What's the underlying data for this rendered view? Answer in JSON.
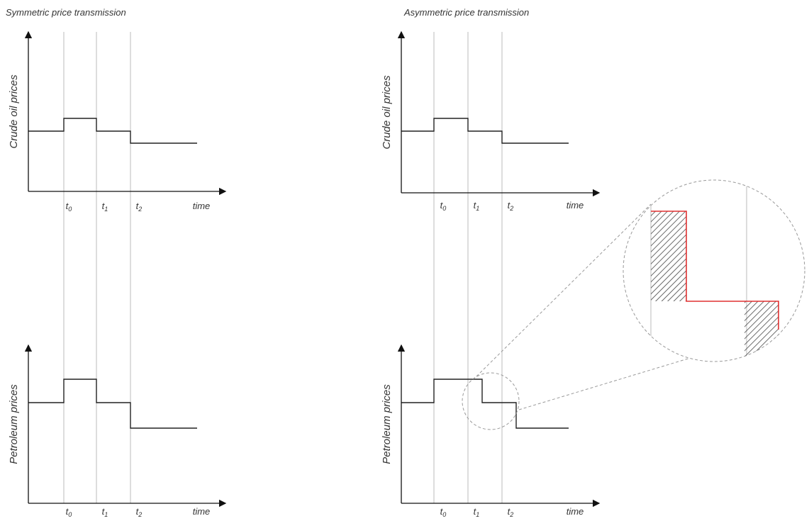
{
  "titles": [
    "Symmetric price transmission",
    "Asymmetric price transmission"
  ],
  "panels": [
    {
      "y_label": "Crude oil prices",
      "x_label": "time",
      "ticks": [
        {
          "main": "t",
          "sub": "0"
        },
        {
          "main": "t",
          "sub": "1"
        },
        {
          "main": "t",
          "sub": "2"
        }
      ]
    },
    {
      "y_label": "Petroleum  prices",
      "x_label": "time",
      "ticks": [
        {
          "main": "t",
          "sub": "0"
        },
        {
          "main": "t",
          "sub": "1"
        },
        {
          "main": "t",
          "sub": "2"
        }
      ]
    },
    {
      "y_label": "Crude oil prices",
      "x_label": "time",
      "ticks": [
        {
          "main": "t",
          "sub": "0"
        },
        {
          "main": "t",
          "sub": "1"
        },
        {
          "main": "t",
          "sub": "2"
        }
      ]
    },
    {
      "y_label": "Petroleum  prices",
      "x_label": "time",
      "ticks": [
        {
          "main": "t",
          "sub": "0"
        },
        {
          "main": "t",
          "sub": "1"
        },
        {
          "main": "t",
          "sub": "2"
        }
      ]
    }
  ]
}
